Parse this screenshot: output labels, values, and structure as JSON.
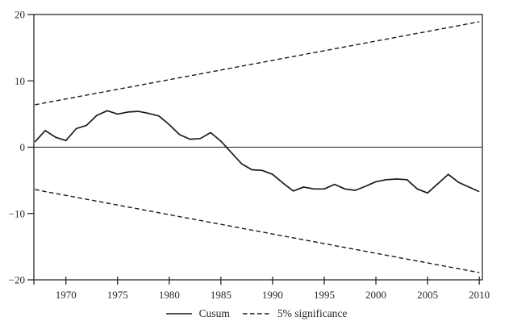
{
  "page": {
    "background": "#ffffff",
    "title": ""
  },
  "chart_data": {
    "type": "line",
    "title": "",
    "xlabel": "",
    "ylabel": "",
    "x": [
      1967,
      1968,
      1969,
      1970,
      1971,
      1972,
      1973,
      1974,
      1975,
      1976,
      1977,
      1978,
      1979,
      1980,
      1981,
      1982,
      1983,
      1984,
      1985,
      1986,
      1987,
      1988,
      1989,
      1990,
      1991,
      1992,
      1993,
      1994,
      1995,
      1996,
      1997,
      1998,
      1999,
      2000,
      2001,
      2002,
      2003,
      2004,
      2005,
      2006,
      2007,
      2008,
      2009,
      2010
    ],
    "series": [
      {
        "id": "cusum",
        "name": "Cusum",
        "style": "solid",
        "values": [
          0.8,
          2.5,
          1.5,
          1.0,
          2.8,
          3.3,
          4.8,
          5.5,
          5.0,
          5.3,
          5.4,
          5.1,
          4.7,
          3.4,
          1.9,
          1.2,
          1.3,
          2.2,
          0.9,
          -0.8,
          -2.5,
          -3.4,
          -3.5,
          -4.1,
          -5.4,
          -6.6,
          -6.0,
          -6.3,
          -6.3,
          -5.6,
          -6.3,
          -6.5,
          -5.9,
          -5.2,
          -4.9,
          -4.8,
          -4.9,
          -6.3,
          -6.9,
          -5.5,
          -4.1,
          -5.3,
          -6.0,
          -6.7
        ]
      },
      {
        "id": "significance-upper",
        "name": "5% significance (upper bound)",
        "style": "dashed",
        "x": [
          1967,
          2010
        ],
        "values": [
          6.4,
          18.9
        ]
      },
      {
        "id": "significance-lower",
        "name": "5% significance (lower bound)",
        "style": "dashed",
        "x": [
          1967,
          2010
        ],
        "values": [
          -6.4,
          -18.9
        ]
      }
    ],
    "xlim": [
      1966.9,
      2010.3
    ],
    "ylim": [
      -20,
      20
    ],
    "xticks": [
      {
        "value": 1970,
        "label": "1970"
      },
      {
        "value": 1975,
        "label": "1975"
      },
      {
        "value": 1980,
        "label": "1980"
      },
      {
        "value": 1985,
        "label": "1985"
      },
      {
        "value": 1990,
        "label": "1990"
      },
      {
        "value": 1995,
        "label": "1995"
      },
      {
        "value": 2000,
        "label": "2000"
      },
      {
        "value": 2005,
        "label": "2005"
      },
      {
        "value": 2010,
        "label": "2010"
      }
    ],
    "yticks": [
      {
        "value": 20,
        "label": "20"
      },
      {
        "value": 10,
        "label": "10"
      },
      {
        "value": 0,
        "label": "0"
      },
      {
        "value": -10,
        "label": "−10"
      },
      {
        "value": -20,
        "label": "−20"
      }
    ],
    "zero_line": true,
    "grid": false,
    "frame": "box",
    "legend": {
      "position": "bottom-center",
      "items": [
        {
          "label": "Cusum",
          "line_style": "solid"
        },
        {
          "label": "5% significance",
          "line_style": "dashed"
        }
      ]
    },
    "colors": {
      "line": "#1a1a1a",
      "text": "#26282b",
      "background": "#ffffff"
    }
  }
}
